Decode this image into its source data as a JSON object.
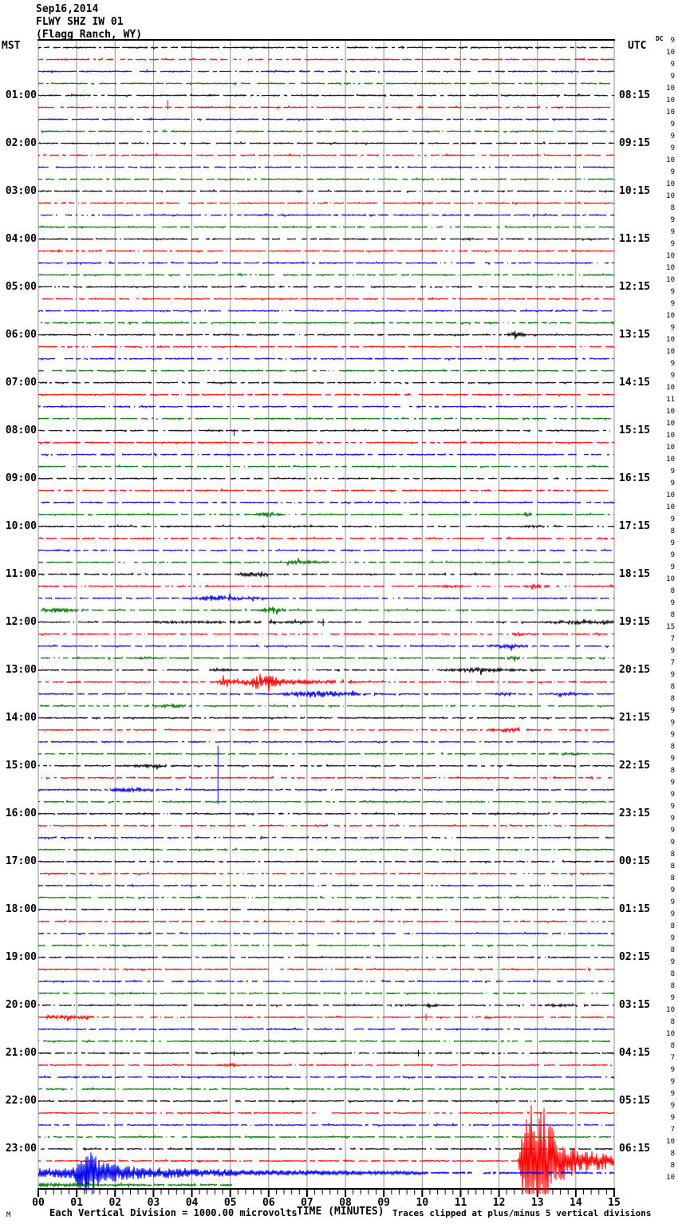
{
  "title": {
    "date": "Sep16,2014",
    "station": "FLWY SHZ IW 01",
    "location": "(Flagg Ranch, WY)"
  },
  "left_axis": {
    "header": "MST",
    "labels": [
      "01:00",
      "02:00",
      "03:00",
      "04:00",
      "05:00",
      "06:00",
      "07:00",
      "08:00",
      "09:00",
      "10:00",
      "11:00",
      "12:00",
      "13:00",
      "14:00",
      "15:00",
      "16:00",
      "17:00",
      "18:00",
      "19:00",
      "20:00",
      "21:00",
      "22:00",
      "23:00"
    ]
  },
  "right_axis": {
    "header": "UTC",
    "labels": [
      "08:15",
      "09:15",
      "10:15",
      "11:15",
      "12:15",
      "13:15",
      "14:15",
      "15:15",
      "16:15",
      "17:15",
      "18:15",
      "19:15",
      "20:15",
      "21:15",
      "22:15",
      "23:15",
      "00:15",
      "01:15",
      "02:15",
      "03:15",
      "04:15",
      "05:15",
      "06:15"
    ]
  },
  "dc_column": {
    "header": "DC",
    "values": [
      9,
      10,
      9,
      9,
      10,
      10,
      10,
      9,
      9,
      9,
      10,
      9,
      10,
      10,
      8,
      9,
      9,
      9,
      10,
      10,
      10,
      9,
      9,
      10,
      9,
      10,
      10,
      9,
      9,
      10,
      11,
      10,
      10,
      10,
      10,
      10,
      9,
      9,
      10,
      10,
      9,
      8,
      9,
      9,
      9,
      10,
      8,
      9,
      8,
      15,
      7,
      9,
      7,
      9,
      8,
      8,
      9,
      9,
      9,
      8,
      9,
      8,
      9,
      9,
      9,
      9,
      9,
      9,
      8,
      8,
      8,
      9,
      9,
      9,
      8,
      9,
      8,
      9,
      8,
      8,
      9,
      10,
      8,
      10,
      8,
      7,
      9,
      9,
      9,
      9,
      9,
      7,
      10,
      8,
      8,
      10
    ]
  },
  "x_axis": {
    "tick_labels": [
      "00",
      "01",
      "02",
      "03",
      "04",
      "05",
      "06",
      "07",
      "08",
      "09",
      "10",
      "11",
      "12",
      "13",
      "14",
      "15"
    ],
    "minor_per_major": 5
  },
  "footer": {
    "mark": "M",
    "scale_note": "Each Vertical Division = 1000.00 microvolts",
    "axis_title": "TIME (MINUTES)",
    "clip_note": "Traces clipped at plus/minus 5 vertical divisions"
  },
  "chart_data": {
    "type": "helicorder",
    "rows": 96,
    "minutes_per_row": 15,
    "start_time_mst": "00:00",
    "hours_offset_utc": "+7:15 at right edge",
    "trace_color_cycle": [
      "#000000",
      "#ff0000",
      "#0000ee",
      "#007000"
    ],
    "grid_color": "#909090",
    "clip_divisions": 5,
    "division_microvolts": "1000.00",
    "partial_rows": [
      {
        "row": 95,
        "end_min": 5.05
      }
    ],
    "events": [
      {
        "row": 5,
        "type": "spike",
        "t": 3.37,
        "up": 9,
        "down": 3,
        "note": "small red spike 01:15 MST"
      },
      {
        "row": 24,
        "type": "burst",
        "profile": [
          [
            12.2,
            0.8
          ],
          [
            12.4,
            5
          ],
          [
            12.75,
            0.8
          ]
        ],
        "note": "06:00 MST small local event"
      },
      {
        "row": 24,
        "type": "spike",
        "t": 12.42,
        "up": 5,
        "down": 6
      },
      {
        "row": 31,
        "type": "quiet",
        "t0": 4.3,
        "t1": 5.5
      },
      {
        "row": 32,
        "type": "spike",
        "t": 5.1,
        "up": 2,
        "down": 7
      },
      {
        "row": 39,
        "type": "burst",
        "profile": [
          [
            5.6,
            0.8
          ],
          [
            6.0,
            3
          ],
          [
            6.4,
            0.8
          ]
        ]
      },
      {
        "row": 39,
        "type": "burst",
        "profile": [
          [
            12.4,
            0.8
          ],
          [
            12.7,
            2.5
          ],
          [
            13.1,
            0.8
          ]
        ]
      },
      {
        "row": 40,
        "type": "burst",
        "profile": [
          [
            12.6,
            0.8
          ],
          [
            12.9,
            2
          ],
          [
            13.3,
            0.8
          ]
        ]
      },
      {
        "row": 43,
        "type": "burst",
        "profile": [
          [
            6.1,
            0.8
          ],
          [
            6.8,
            3
          ],
          [
            7.7,
            0.8
          ]
        ]
      },
      {
        "row": 44,
        "type": "burst",
        "profile": [
          [
            5.1,
            0.8
          ],
          [
            5.5,
            3.5
          ],
          [
            6.1,
            0.8
          ]
        ]
      },
      {
        "row": 45,
        "type": "burst",
        "profile": [
          [
            10.5,
            0.8
          ],
          [
            10.8,
            2.5
          ],
          [
            11.1,
            0.8
          ]
        ]
      },
      {
        "row": 45,
        "type": "burst",
        "profile": [
          [
            12.6,
            0.8
          ],
          [
            13.0,
            2.5
          ],
          [
            13.4,
            0.8
          ]
        ]
      },
      {
        "row": 46,
        "type": "burst",
        "profile": [
          [
            3.9,
            0.8
          ],
          [
            4.6,
            4
          ],
          [
            5.3,
            2.5
          ],
          [
            6.0,
            0.8
          ]
        ]
      },
      {
        "row": 47,
        "type": "burst",
        "profile": [
          [
            0.1,
            2.5
          ],
          [
            0.9,
            2.5
          ],
          [
            1.4,
            0.8
          ]
        ]
      },
      {
        "row": 47,
        "type": "burst",
        "profile": [
          [
            5.7,
            0.8
          ],
          [
            6.1,
            5
          ],
          [
            6.5,
            0.8
          ]
        ]
      },
      {
        "row": 48,
        "type": "burst",
        "profile": [
          [
            3.0,
            1.6
          ],
          [
            7.0,
            1.6
          ],
          [
            7.4,
            0.8
          ]
        ]
      },
      {
        "row": 48,
        "type": "spike",
        "t": 7.42,
        "up": 4,
        "down": 5
      },
      {
        "row": 48,
        "type": "burst",
        "profile": [
          [
            13.1,
            0.8
          ],
          [
            13.6,
            2.5
          ],
          [
            15,
            2
          ]
        ]
      },
      {
        "row": 49,
        "type": "burst",
        "profile": [
          [
            12.1,
            0.8
          ],
          [
            12.45,
            2.5
          ],
          [
            12.8,
            0.8
          ]
        ]
      },
      {
        "row": 50,
        "type": "burst",
        "profile": [
          [
            11.5,
            0.8
          ],
          [
            12.2,
            3
          ],
          [
            12.9,
            0.8
          ]
        ]
      },
      {
        "row": 51,
        "type": "burst",
        "profile": [
          [
            2.5,
            0.8
          ],
          [
            2.8,
            2
          ],
          [
            3.1,
            0.8
          ]
        ]
      },
      {
        "row": 51,
        "type": "burst",
        "profile": [
          [
            12.0,
            0.8
          ],
          [
            12.35,
            2.5
          ],
          [
            12.7,
            0.8
          ]
        ]
      },
      {
        "row": 52,
        "type": "burst",
        "profile": [
          [
            4.3,
            0.8
          ],
          [
            4.7,
            2.5
          ],
          [
            5.1,
            0.8
          ]
        ]
      },
      {
        "row": 52,
        "type": "burst",
        "profile": [
          [
            10.3,
            0.8
          ],
          [
            11.5,
            3
          ],
          [
            13.2,
            0.8
          ]
        ]
      },
      {
        "row": 53,
        "type": "event",
        "profile": [
          [
            4.6,
            0.8
          ],
          [
            4.9,
            5
          ],
          [
            5.5,
            4
          ],
          [
            5.75,
            11
          ],
          [
            6.05,
            9
          ],
          [
            6.4,
            4
          ],
          [
            7.0,
            3
          ],
          [
            8.0,
            1.6
          ],
          [
            8.6,
            0.8
          ]
        ],
        "note": "13:15 MST local earthquake, red trace"
      },
      {
        "row": 54,
        "type": "event",
        "profile": [
          [
            6.3,
            0.8
          ],
          [
            6.7,
            3
          ],
          [
            7.1,
            5
          ],
          [
            7.6,
            4
          ],
          [
            8.1,
            2.5
          ],
          [
            8.8,
            1.2
          ],
          [
            9.2,
            0.8
          ]
        ],
        "note": "coda on 13:30 MST blue trace"
      },
      {
        "row": 54,
        "type": "burst",
        "profile": [
          [
            11.8,
            0.8
          ],
          [
            12.2,
            2.5
          ],
          [
            12.6,
            0.8
          ]
        ]
      },
      {
        "row": 54,
        "type": "burst",
        "profile": [
          [
            13.3,
            0.8
          ],
          [
            13.8,
            2.5
          ],
          [
            14.4,
            0.8
          ]
        ]
      },
      {
        "row": 55,
        "type": "burst",
        "profile": [
          [
            2.7,
            0.8
          ],
          [
            3.3,
            3
          ],
          [
            4.1,
            0.8
          ]
        ]
      },
      {
        "row": 57,
        "type": "burst",
        "profile": [
          [
            11.6,
            0.8
          ],
          [
            12.2,
            3
          ],
          [
            12.9,
            0.8
          ]
        ]
      },
      {
        "row": 59,
        "type": "burst",
        "profile": [
          [
            13.3,
            0.8
          ],
          [
            13.8,
            2
          ],
          [
            14.3,
            0.8
          ]
        ]
      },
      {
        "row": 60,
        "type": "burst",
        "profile": [
          [
            2.2,
            0.8
          ],
          [
            2.9,
            2.5
          ],
          [
            3.7,
            0.8
          ]
        ]
      },
      {
        "row": 62,
        "type": "burst",
        "profile": [
          [
            1.6,
            0.8
          ],
          [
            2.4,
            3.5
          ],
          [
            3.4,
            0.8
          ]
        ]
      },
      {
        "row": 62,
        "type": "spike",
        "t": 4.68,
        "up": 55,
        "down": 18,
        "note": "tall telemetry spike 15:30 MST"
      },
      {
        "row": 80,
        "type": "burst",
        "profile": [
          [
            9.0,
            0.8
          ],
          [
            9.4,
            2.5
          ],
          [
            9.8,
            0.8
          ]
        ]
      },
      {
        "row": 80,
        "type": "burst",
        "profile": [
          [
            9.95,
            0.8
          ],
          [
            10.2,
            3
          ],
          [
            10.45,
            0.8
          ]
        ]
      },
      {
        "row": 80,
        "type": "burst",
        "profile": [
          [
            13.0,
            0.8
          ],
          [
            13.7,
            2.5
          ],
          [
            14.5,
            0.8
          ]
        ]
      },
      {
        "row": 81,
        "type": "burst",
        "profile": [
          [
            0.2,
            2.5
          ],
          [
            1.2,
            2.2
          ],
          [
            1.7,
            0.8
          ]
        ]
      },
      {
        "row": 81,
        "type": "spike",
        "t": 10.1,
        "up": 4,
        "down": 4
      },
      {
        "row": 81,
        "type": "burst",
        "profile": [
          [
            11.4,
            0.8
          ],
          [
            11.65,
            2
          ],
          [
            11.9,
            0.8
          ]
        ]
      },
      {
        "row": 82,
        "type": "quiet",
        "t0": 9.9,
        "t1": 10.4
      },
      {
        "row": 84,
        "type": "spike",
        "t": 5.1,
        "up": 3,
        "down": 3
      },
      {
        "row": 84,
        "type": "spike",
        "t": 9.9,
        "up": 4,
        "down": 4
      },
      {
        "row": 85,
        "type": "burst",
        "profile": [
          [
            4.7,
            0.8
          ],
          [
            5.05,
            2.5
          ],
          [
            5.4,
            0.8
          ]
        ]
      },
      {
        "row": 93,
        "type": "bigevent",
        "jitter": true,
        "profile": [
          [
            12.5,
            0.8
          ],
          [
            12.58,
            40
          ],
          [
            12.68,
            75
          ],
          [
            13.1,
            75
          ],
          [
            13.5,
            30
          ],
          [
            14.0,
            16
          ],
          [
            14.5,
            12
          ],
          [
            15,
            10
          ]
        ],
        "note": "large clipped earthquake 23:15 MST / 06:30 UTC, red trace"
      },
      {
        "row": 94,
        "type": "coda",
        "jitter": true,
        "profile": [
          [
            0,
            6
          ],
          [
            0.9,
            7
          ],
          [
            1.05,
            20
          ],
          [
            1.35,
            28
          ],
          [
            1.6,
            16
          ],
          [
            2.2,
            9
          ],
          [
            3.0,
            7
          ],
          [
            4.5,
            5
          ],
          [
            6,
            4
          ],
          [
            8,
            3
          ],
          [
            10,
            2
          ],
          [
            10.2,
            1.2
          ],
          [
            15,
            1.2
          ]
        ],
        "note": "continuing coda on 23:30 MST blue trace"
      },
      {
        "row": 94,
        "type": "spike",
        "t": 1.25,
        "up": 12,
        "down": 45
      },
      {
        "row": 94,
        "type": "spike",
        "t": 1.45,
        "up": 10,
        "down": 38
      },
      {
        "row": 95,
        "type": "burst",
        "profile": [
          [
            0,
            2.5
          ],
          [
            1.3,
            2.2
          ],
          [
            1.6,
            1.2
          ],
          [
            5.0,
            1.2
          ]
        ],
        "note": "trace ends at minute 5"
      }
    ]
  }
}
